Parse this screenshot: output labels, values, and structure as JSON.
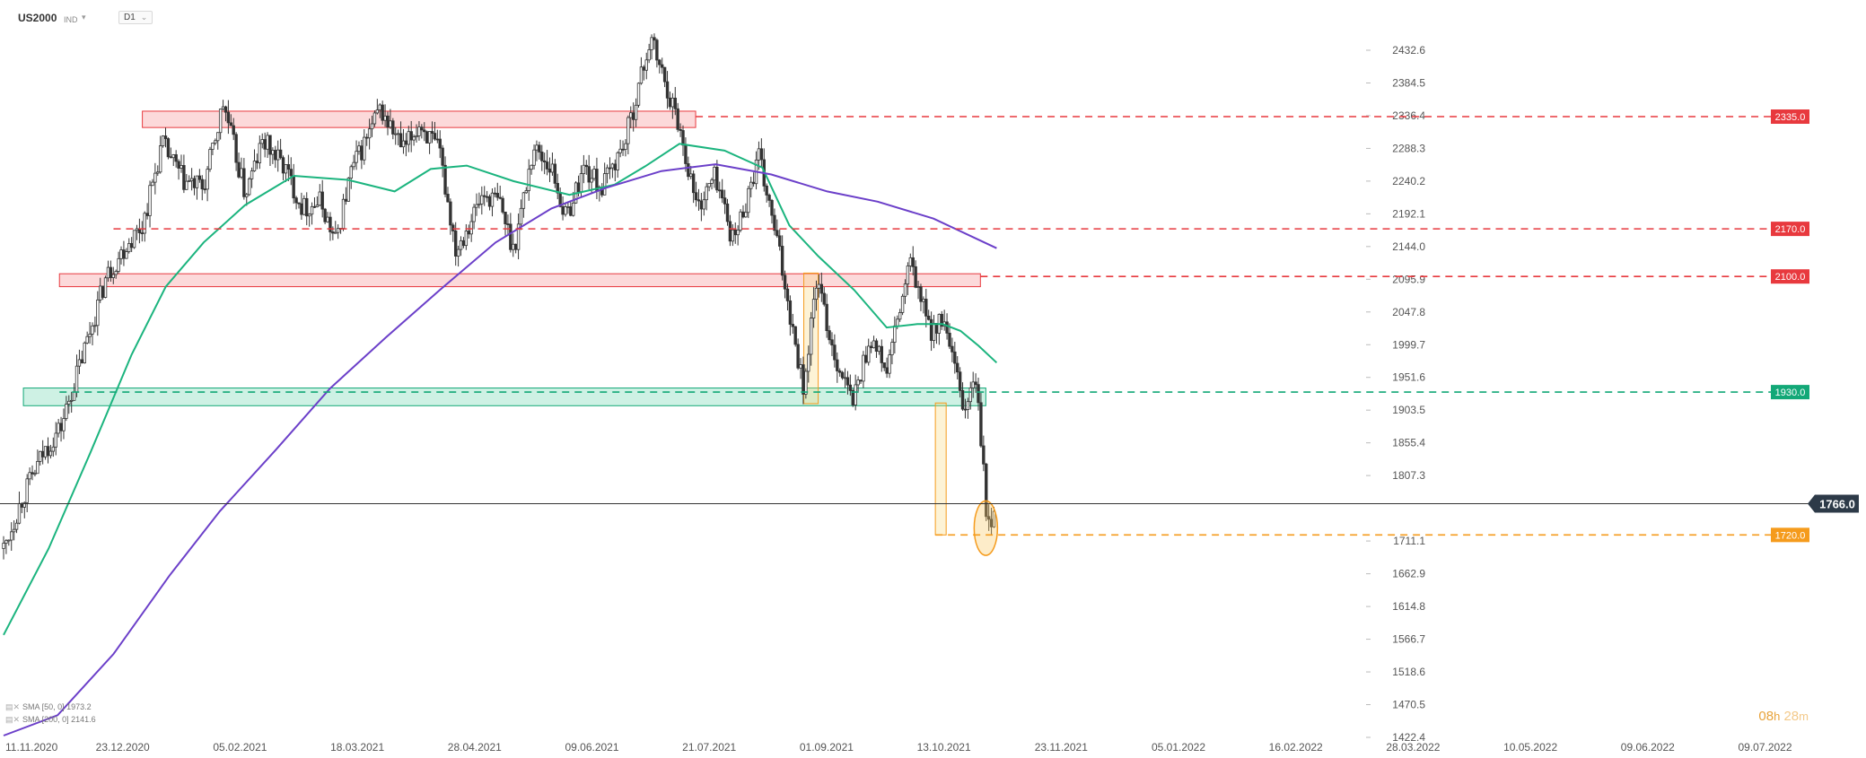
{
  "header": {
    "symbol": "US2000",
    "market": "IND",
    "timeframe": "D1"
  },
  "legend": [
    {
      "name": "SMA",
      "params": "[50, 0]",
      "value": "1973.2",
      "color": "#1bb47e"
    },
    {
      "name": "SMA",
      "params": "[200, 0]",
      "value": "2141.6",
      "color": "#6b3fc9"
    }
  ],
  "countdown": {
    "hours": "08",
    "h": "h",
    "minutes": "28",
    "m": "m"
  },
  "chart_data": {
    "type": "candlestick",
    "symbol": "US2000",
    "timeframe": "D1",
    "y_ticks": [
      "2432.6",
      "2384.5",
      "2336.4",
      "2288.3",
      "2240.2",
      "2192.1",
      "2144.0",
      "2095.9",
      "2047.8",
      "1999.7",
      "1951.6",
      "1903.5",
      "1855.4",
      "1807.3",
      "1711.1",
      "1662.9",
      "1614.8",
      "1566.7",
      "1518.6",
      "1470.5",
      "1422.4"
    ],
    "ylim": [
      1422.4,
      2432.6
    ],
    "x_ticks": [
      "11.11.2020",
      "23.12.2020",
      "05.02.2021",
      "18.03.2021",
      "28.04.2021",
      "09.06.2021",
      "21.07.2021",
      "01.09.2021",
      "13.10.2021",
      "23.11.2021",
      "05.01.2022",
      "16.02.2022",
      "28.03.2022",
      "10.05.2022",
      "09.06.2022",
      "09.07.2022"
    ],
    "current_price": {
      "value": 1766.0,
      "label": "1766.0"
    },
    "levels": [
      {
        "value": 2335.0,
        "label": "2335.0",
        "color": "#e8393e",
        "style": "dashed"
      },
      {
        "value": 2170.0,
        "label": "2170.0",
        "color": "#e8393e",
        "style": "dashed"
      },
      {
        "value": 2100.0,
        "label": "2100.0",
        "color": "#e8393e",
        "style": "dashed"
      },
      {
        "value": 1930.0,
        "label": "1930.0",
        "color": "#12a877",
        "style": "dashed"
      },
      {
        "value": 1720.0,
        "label": "1720.0",
        "color": "#f59b1c",
        "style": "dashed"
      }
    ],
    "zones": [
      {
        "from": "2021-01-26",
        "to": "2021-11-29",
        "low": 2319,
        "high": 2343,
        "color": "red"
      },
      {
        "from": "2020-12-11",
        "to": "2022-05-06",
        "low": 2085,
        "high": 2104,
        "color": "red"
      },
      {
        "from": "2020-11-21",
        "to": "2022-05-09",
        "low": 1910,
        "high": 1936,
        "color": "green"
      },
      {
        "from": "2022-01-28",
        "to": "2022-02-05",
        "low": 1913,
        "high": 2105,
        "color": "orange"
      },
      {
        "from": "2022-04-11",
        "to": "2022-04-17",
        "low": 1720,
        "high": 1914,
        "color": "orange"
      }
    ],
    "highlight": {
      "date": "2022-05-09",
      "low": 1690,
      "high": 1770,
      "color": "orange"
    },
    "price_path": [
      [
        "2020-11-10",
        1700
      ],
      [
        "2020-11-20",
        1772
      ],
      [
        "2020-12-02",
        1840
      ],
      [
        "2020-12-12",
        1880
      ],
      [
        "2020-12-24",
        1985
      ],
      [
        "2021-01-06",
        2100
      ],
      [
        "2021-01-18",
        2150
      ],
      [
        "2021-01-26",
        2175
      ],
      [
        "2021-02-06",
        2295
      ],
      [
        "2021-02-18",
        2240
      ],
      [
        "2021-03-01",
        2230
      ],
      [
        "2021-03-12",
        2355
      ],
      [
        "2021-03-24",
        2220
      ],
      [
        "2021-04-03",
        2300
      ],
      [
        "2021-04-15",
        2260
      ],
      [
        "2021-04-25",
        2200
      ],
      [
        "2021-05-05",
        2210
      ],
      [
        "2021-05-13",
        2150
      ],
      [
        "2021-05-22",
        2255
      ],
      [
        "2021-06-07",
        2345
      ],
      [
        "2021-06-20",
        2285
      ],
      [
        "2021-06-29",
        2325
      ],
      [
        "2021-07-10",
        2280
      ],
      [
        "2021-07-19",
        2140
      ],
      [
        "2021-08-03",
        2220
      ],
      [
        "2021-08-12",
        2210
      ],
      [
        "2021-08-20",
        2140
      ],
      [
        "2021-08-31",
        2290
      ],
      [
        "2021-09-10",
        2260
      ],
      [
        "2021-09-18",
        2185
      ],
      [
        "2021-09-28",
        2260
      ],
      [
        "2021-10-08",
        2230
      ],
      [
        "2021-10-21",
        2300
      ],
      [
        "2021-11-04",
        2450
      ],
      [
        "2021-11-19",
        2330
      ],
      [
        "2021-11-30",
        2200
      ],
      [
        "2021-12-10",
        2250
      ],
      [
        "2021-12-20",
        2150
      ],
      [
        "2022-01-03",
        2275
      ],
      [
        "2022-01-14",
        2140
      ],
      [
        "2022-01-28",
        1935
      ],
      [
        "2022-02-04",
        2095
      ],
      [
        "2022-02-14",
        1985
      ],
      [
        "2022-02-24",
        1915
      ],
      [
        "2022-03-06",
        2010
      ],
      [
        "2022-03-15",
        1960
      ],
      [
        "2022-03-28",
        2120
      ],
      [
        "2022-04-08",
        2020
      ],
      [
        "2022-04-15",
        2035
      ],
      [
        "2022-04-22",
        1960
      ],
      [
        "2022-04-27",
        1900
      ],
      [
        "2022-05-03",
        1955
      ],
      [
        "2022-05-07",
        1840
      ],
      [
        "2022-05-10",
        1720
      ],
      [
        "2022-05-14",
        1766
      ]
    ],
    "series": [
      {
        "name": "SMA [50, 0]",
        "color": "#1bb47e",
        "points": [
          [
            "2020-11-10",
            1573
          ],
          [
            "2020-12-05",
            1700
          ],
          [
            "2020-12-28",
            1840
          ],
          [
            "2021-01-20",
            1985
          ],
          [
            "2021-02-08",
            2085
          ],
          [
            "2021-03-01",
            2150
          ],
          [
            "2021-03-24",
            2205
          ],
          [
            "2021-04-20",
            2248
          ],
          [
            "2021-05-20",
            2242
          ],
          [
            "2021-06-15",
            2225
          ],
          [
            "2021-07-05",
            2258
          ],
          [
            "2021-07-25",
            2263
          ],
          [
            "2021-08-20",
            2240
          ],
          [
            "2021-09-20",
            2220
          ],
          [
            "2021-10-15",
            2235
          ],
          [
            "2021-11-01",
            2262
          ],
          [
            "2021-11-20",
            2295
          ],
          [
            "2021-12-15",
            2285
          ],
          [
            "2022-01-05",
            2260
          ],
          [
            "2022-01-20",
            2175
          ],
          [
            "2022-02-05",
            2130
          ],
          [
            "2022-02-25",
            2080
          ],
          [
            "2022-03-15",
            2025
          ],
          [
            "2022-04-01",
            2030
          ],
          [
            "2022-04-15",
            2030
          ],
          [
            "2022-04-25",
            2020
          ],
          [
            "2022-05-05",
            1998
          ],
          [
            "2022-05-15",
            1973.2
          ]
        ]
      },
      {
        "name": "SMA [200, 0]",
        "color": "#6b3fc9",
        "points": [
          [
            "2020-11-10",
            1425
          ],
          [
            "2020-12-10",
            1455
          ],
          [
            "2021-01-10",
            1545
          ],
          [
            "2021-02-10",
            1660
          ],
          [
            "2021-03-10",
            1755
          ],
          [
            "2021-04-10",
            1845
          ],
          [
            "2021-05-10",
            1935
          ],
          [
            "2021-06-10",
            2010
          ],
          [
            "2021-07-10",
            2080
          ],
          [
            "2021-08-10",
            2150
          ],
          [
            "2021-09-10",
            2200
          ],
          [
            "2021-10-10",
            2230
          ],
          [
            "2021-11-10",
            2255
          ],
          [
            "2021-12-10",
            2265
          ],
          [
            "2022-01-10",
            2250
          ],
          [
            "2022-02-10",
            2225
          ],
          [
            "2022-03-10",
            2210
          ],
          [
            "2022-04-10",
            2185
          ],
          [
            "2022-05-15",
            2141.6
          ]
        ]
      }
    ]
  }
}
